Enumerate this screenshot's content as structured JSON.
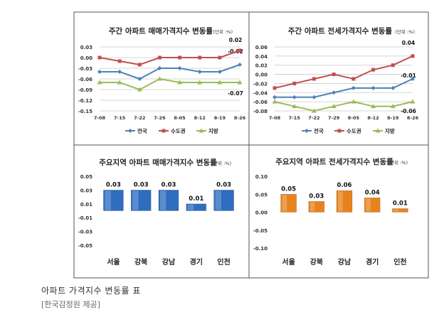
{
  "caption": {
    "title": "아파트 가격지수 변동률 표",
    "source": "[한국감정원 제공]"
  },
  "colors": {
    "national": "#4F81BD",
    "capital": "#C0504D",
    "regional": "#9BBB59",
    "blue_bar": "#2E6DC0",
    "orange_bar": "#E8821E",
    "gridline": "#C8C8C8",
    "border": "#555555"
  },
  "chart_data": [
    {
      "id": "weekly-sale",
      "type": "line",
      "title": "주간 아파트 매매가격지수 변동률",
      "unit": "(단위 :%)",
      "x": [
        "7-08",
        "7-15",
        "7-22",
        "7-29",
        "8-05",
        "8-12",
        "8-19",
        "8-26"
      ],
      "ylim": [
        -0.15,
        0.03
      ],
      "yticks": [
        "0.03",
        "0.00",
        "-0.03",
        "-0.06",
        "-0.09",
        "-0.12",
        "-0.15"
      ],
      "ytick_values": [
        0.03,
        0.0,
        -0.03,
        -0.06,
        -0.09,
        -0.12,
        -0.15
      ],
      "grid": true,
      "legend": "bottom",
      "series": [
        {
          "name": "전국",
          "values": [
            -0.04,
            -0.04,
            -0.06,
            -0.03,
            -0.03,
            -0.04,
            -0.04,
            -0.02
          ],
          "end_label": "-0.02",
          "color": "#4F81BD",
          "marker": "diamond"
        },
        {
          "name": "수도권",
          "values": [
            0.0,
            -0.01,
            -0.02,
            0.0,
            0.0,
            0.0,
            0.0,
            0.02
          ],
          "end_label": "0.02",
          "color": "#C0504D",
          "marker": "square"
        },
        {
          "name": "지방",
          "values": [
            -0.07,
            -0.07,
            -0.09,
            -0.06,
            -0.07,
            -0.07,
            -0.07,
            -0.07
          ],
          "end_label": "-0.07",
          "color": "#9BBB59",
          "marker": "triangle"
        }
      ]
    },
    {
      "id": "weekly-jeonse",
      "type": "line",
      "title": "주간 아파트 전세가격지수 변동률",
      "unit": "(단위 :%)",
      "x": [
        "7-08",
        "7-15",
        "7-22",
        "7-29",
        "8-05",
        "8-12",
        "8-19",
        "8-26"
      ],
      "ylim": [
        -0.08,
        0.06
      ],
      "yticks": [
        "0.06",
        "0.04",
        "0.02",
        "0.00",
        "-0.02",
        "-0.04",
        "-0.06",
        "-0.08"
      ],
      "ytick_values": [
        0.06,
        0.04,
        0.02,
        0.0,
        -0.02,
        -0.04,
        -0.06,
        -0.08
      ],
      "grid": true,
      "legend": "bottom",
      "series": [
        {
          "name": "전국",
          "values": [
            -0.05,
            -0.05,
            -0.05,
            -0.04,
            -0.03,
            -0.03,
            -0.03,
            -0.01
          ],
          "end_label": "-0.01",
          "color": "#4F81BD",
          "marker": "diamond"
        },
        {
          "name": "수도권",
          "values": [
            -0.03,
            -0.02,
            -0.01,
            0.0,
            -0.01,
            0.01,
            0.02,
            0.04
          ],
          "end_label": "0.04",
          "color": "#C0504D",
          "marker": "square"
        },
        {
          "name": "지방",
          "values": [
            -0.06,
            -0.07,
            -0.08,
            -0.07,
            -0.06,
            -0.07,
            -0.07,
            -0.06
          ],
          "end_label": "-0.06",
          "color": "#9BBB59",
          "marker": "triangle"
        }
      ]
    },
    {
      "id": "region-sale",
      "type": "bar",
      "title": "주요지역 아파트 매매가격지수 변동률",
      "unit": "(단위 :%)",
      "categories": [
        "서울",
        "강북",
        "강남",
        "경기",
        "인천"
      ],
      "values": [
        0.03,
        0.03,
        0.03,
        0.01,
        0.03
      ],
      "value_labels": [
        "0.03",
        "0.03",
        "0.03",
        "0.01",
        "0.03"
      ],
      "ylim": [
        -0.05,
        0.05
      ],
      "yticks": [
        "0.05",
        "0.03",
        "0.01",
        "-0.01",
        "-0.03",
        "-0.05"
      ],
      "ytick_values": [
        0.05,
        0.03,
        0.01,
        -0.01,
        -0.03,
        -0.05
      ],
      "grid": false,
      "color": "#2E6DC0"
    },
    {
      "id": "region-jeonse",
      "type": "bar",
      "title": "주요지역 아파트 전세가격지수 변동률",
      "unit": "(단위 :%)",
      "categories": [
        "서울",
        "강북",
        "강남",
        "경기",
        "인천"
      ],
      "values": [
        0.05,
        0.03,
        0.06,
        0.04,
        0.01
      ],
      "value_labels": [
        "0.05",
        "0.03",
        "0.06",
        "0.04",
        "0.01"
      ],
      "ylim": [
        -0.1,
        0.1
      ],
      "yticks": [
        "0.10",
        "0.05",
        "0.00",
        "-0.05",
        "-0.10"
      ],
      "ytick_values": [
        0.1,
        0.05,
        0.0,
        -0.05,
        -0.1
      ],
      "grid": false,
      "color": "#E8821E"
    }
  ]
}
